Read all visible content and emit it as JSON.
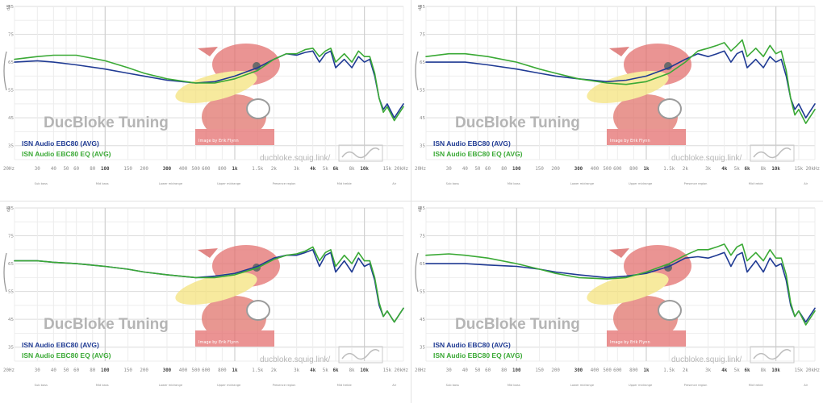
{
  "chart_data": [
    {
      "type": "line",
      "watermark": "DucBloke Tuning",
      "site": "ducbloke.squig.link/",
      "image_credit": "Image by Erik Flynn",
      "x_ticks": [
        "20Hz",
        "30",
        "40",
        "50",
        "60",
        "80",
        "100",
        "150",
        "200",
        "300",
        "400",
        "500",
        "600",
        "800",
        "1k",
        "1.5k",
        "2k",
        "3k",
        "4k",
        "5k",
        "6k",
        "8k",
        "10k",
        "15k",
        "20kHz"
      ],
      "y_ticks": [
        "85",
        "75",
        "65",
        "55",
        "45",
        "35"
      ],
      "ylabel": "dB",
      "xlim": [
        20,
        20000
      ],
      "ylim": [
        30,
        85
      ],
      "x_scale": "log",
      "grid": true,
      "legend_position": "bottom-left",
      "regions": [
        "Sub bass",
        "Mid bass",
        "Lower midrange",
        "Upper midrange",
        "Presence region",
        "Mid treble",
        "Air"
      ],
      "series": [
        {
          "name": "ISN Audio EBC80 (AVG)",
          "color": "#1f3a93",
          "x": [
            20,
            30,
            40,
            60,
            100,
            150,
            200,
            300,
            500,
            700,
            1000,
            1500,
            2000,
            2500,
            3000,
            3500,
            4000,
            4500,
            5000,
            5500,
            6000,
            7000,
            8000,
            9000,
            10000,
            11000,
            12000,
            13000,
            14000,
            15000,
            17000,
            20000
          ],
          "y": [
            65,
            65.5,
            65,
            64,
            62.5,
            61,
            60,
            58.5,
            57.5,
            58,
            60,
            63,
            66,
            68,
            67.5,
            68.5,
            69,
            65,
            68,
            69,
            63,
            66,
            63,
            67,
            65,
            66,
            60,
            52,
            48,
            50,
            45,
            50
          ]
        },
        {
          "name": "ISN Audio EBC80 EQ (AVG)",
          "color": "#3aa935",
          "x": [
            20,
            30,
            40,
            60,
            100,
            150,
            200,
            300,
            500,
            700,
            1000,
            1500,
            2000,
            2500,
            3000,
            3500,
            4000,
            4500,
            5000,
            5500,
            6000,
            7000,
            8000,
            9000,
            10000,
            11000,
            12000,
            13000,
            14000,
            15000,
            17000,
            20000
          ],
          "y": [
            66,
            67,
            67.5,
            67.5,
            65.5,
            63,
            61,
            59,
            57.5,
            57.5,
            59,
            62,
            66,
            68,
            68,
            69.5,
            70,
            67,
            69,
            70,
            65,
            68,
            65,
            69,
            67,
            67,
            61,
            52,
            47,
            49,
            44,
            49
          ]
        }
      ]
    },
    {
      "type": "line",
      "watermark": "DucBloke Tuning",
      "site": "ducbloke.squig.link/",
      "image_credit": "Image by Erik Flynn",
      "x_ticks": [
        "20Hz",
        "30",
        "40",
        "50",
        "60",
        "80",
        "100",
        "150",
        "200",
        "300",
        "400",
        "500",
        "600",
        "800",
        "1k",
        "1.5k",
        "2k",
        "3k",
        "4k",
        "5k",
        "6k",
        "8k",
        "10k",
        "15k",
        "20kHz"
      ],
      "y_ticks": [
        "85",
        "75",
        "65",
        "55",
        "45",
        "35"
      ],
      "ylabel": "dB",
      "xlim": [
        20,
        20000
      ],
      "ylim": [
        30,
        85
      ],
      "x_scale": "log",
      "grid": true,
      "legend_position": "bottom-left",
      "regions": [
        "Sub bass",
        "Mid bass",
        "Lower midrange",
        "Upper midrange",
        "Presence region",
        "Mid treble",
        "Air"
      ],
      "series": [
        {
          "name": "ISN Audio EBC80 (AVG)",
          "color": "#1f3a93",
          "x": [
            20,
            30,
            40,
            60,
            100,
            150,
            200,
            300,
            500,
            700,
            1000,
            1500,
            2000,
            2500,
            3000,
            3500,
            4000,
            4500,
            5000,
            5500,
            6000,
            7000,
            8000,
            9000,
            10000,
            11000,
            12000,
            13000,
            14000,
            15000,
            17000,
            20000
          ],
          "y": [
            65,
            65,
            65,
            64,
            62.5,
            61,
            60,
            59,
            58,
            58.5,
            60,
            63,
            66,
            68,
            67,
            68,
            69,
            65,
            68,
            69,
            63,
            66,
            63,
            67,
            65,
            66,
            60,
            52,
            48,
            50,
            45,
            50
          ]
        },
        {
          "name": "ISN Audio EBC80 EQ (AVG)",
          "color": "#3aa935",
          "x": [
            20,
            30,
            40,
            60,
            100,
            150,
            200,
            300,
            500,
            700,
            1000,
            1500,
            2000,
            2500,
            3000,
            3500,
            4000,
            4500,
            5000,
            5500,
            6000,
            7000,
            8000,
            9000,
            10000,
            11000,
            12000,
            13000,
            14000,
            15000,
            17000,
            20000
          ],
          "y": [
            67,
            68,
            68,
            67,
            65,
            62.5,
            61,
            59,
            57.5,
            57,
            58,
            61,
            65,
            69,
            70,
            71,
            72,
            69,
            71,
            73,
            67,
            70,
            67,
            71,
            68,
            69,
            62,
            52,
            46,
            48,
            43,
            48
          ]
        }
      ]
    },
    {
      "type": "line",
      "watermark": "DucBloke Tuning",
      "site": "ducbloke.squig.link/",
      "image_credit": "Image by Erik Flynn",
      "x_ticks": [
        "20Hz",
        "30",
        "40",
        "50",
        "60",
        "80",
        "100",
        "150",
        "200",
        "300",
        "400",
        "500",
        "600",
        "800",
        "1k",
        "1.5k",
        "2k",
        "3k",
        "4k",
        "5k",
        "6k",
        "8k",
        "10k",
        "15k",
        "20kHz"
      ],
      "y_ticks": [
        "85",
        "75",
        "65",
        "55",
        "45",
        "35"
      ],
      "ylabel": "dB",
      "xlim": [
        20,
        20000
      ],
      "ylim": [
        30,
        85
      ],
      "x_scale": "log",
      "grid": true,
      "legend_position": "bottom-left",
      "regions": [
        "Sub bass",
        "Mid bass",
        "Lower midrange",
        "Upper midrange",
        "Presence region",
        "Mid treble",
        "Air"
      ],
      "series": [
        {
          "name": "ISN Audio EBC80 (AVG)",
          "color": "#1f3a93",
          "x": [
            20,
            30,
            40,
            60,
            100,
            150,
            200,
            300,
            500,
            700,
            1000,
            1500,
            2000,
            2500,
            3000,
            3500,
            4000,
            4500,
            5000,
            5500,
            6000,
            7000,
            8000,
            9000,
            10000,
            11000,
            12000,
            13000,
            14000,
            15000,
            17000,
            20000
          ],
          "y": [
            66,
            66,
            65.5,
            65,
            64,
            63,
            62,
            61,
            60,
            60.5,
            61.5,
            64,
            67,
            68,
            68,
            69,
            70,
            64,
            68,
            69,
            62,
            66,
            62,
            67,
            64,
            65,
            59,
            50,
            46,
            48,
            44,
            49
          ]
        },
        {
          "name": "ISN Audio EBC80 EQ (AVG)",
          "color": "#3aa935",
          "x": [
            20,
            30,
            40,
            60,
            100,
            150,
            200,
            300,
            500,
            700,
            1000,
            1500,
            2000,
            2500,
            3000,
            3500,
            4000,
            4500,
            5000,
            5500,
            6000,
            7000,
            8000,
            9000,
            10000,
            11000,
            12000,
            13000,
            14000,
            15000,
            17000,
            20000
          ],
          "y": [
            66,
            66,
            65.5,
            65,
            64,
            63,
            62,
            61,
            60,
            60,
            61,
            63.5,
            66.5,
            68,
            68.5,
            69.5,
            71,
            66,
            69,
            70,
            64,
            68,
            65,
            69,
            66,
            66,
            60,
            51,
            46,
            48,
            44,
            49
          ]
        }
      ]
    },
    {
      "type": "line",
      "watermark": "DucBloke Tuning",
      "site": "ducbloke.squig.link/",
      "image_credit": "Image by Erik Flynn",
      "x_ticks": [
        "20Hz",
        "30",
        "40",
        "50",
        "60",
        "80",
        "100",
        "150",
        "200",
        "300",
        "400",
        "500",
        "600",
        "800",
        "1k",
        "1.5k",
        "2k",
        "3k",
        "4k",
        "5k",
        "6k",
        "8k",
        "10k",
        "15k",
        "20kHz"
      ],
      "y_ticks": [
        "85",
        "75",
        "65",
        "55",
        "45",
        "35"
      ],
      "ylabel": "dB",
      "xlim": [
        20,
        20000
      ],
      "ylim": [
        30,
        85
      ],
      "x_scale": "log",
      "grid": true,
      "legend_position": "bottom-left",
      "regions": [
        "Sub bass",
        "Mid bass",
        "Lower midrange",
        "Upper midrange",
        "Presence region",
        "Mid treble",
        "Air"
      ],
      "series": [
        {
          "name": "ISN Audio EBC80 (AVG)",
          "color": "#1f3a93",
          "x": [
            20,
            30,
            40,
            60,
            100,
            150,
            200,
            300,
            500,
            700,
            1000,
            1500,
            2000,
            2500,
            3000,
            3500,
            4000,
            4500,
            5000,
            5500,
            6000,
            7000,
            8000,
            9000,
            10000,
            11000,
            12000,
            13000,
            14000,
            15000,
            17000,
            20000
          ],
          "y": [
            65,
            65,
            65,
            64.5,
            64,
            63,
            62,
            61,
            60,
            60.5,
            61.5,
            64,
            67,
            67.5,
            67,
            68,
            69,
            64,
            68,
            69,
            62,
            66,
            62,
            67,
            64,
            65,
            59,
            50,
            46,
            48,
            44,
            49
          ]
        },
        {
          "name": "ISN Audio EBC80 EQ (AVG)",
          "color": "#3aa935",
          "x": [
            20,
            30,
            40,
            60,
            100,
            150,
            200,
            300,
            500,
            700,
            1000,
            1500,
            2000,
            2500,
            3000,
            3500,
            4000,
            4500,
            5000,
            5500,
            6000,
            7000,
            8000,
            9000,
            10000,
            11000,
            12000,
            13000,
            14000,
            15000,
            17000,
            20000
          ],
          "y": [
            68,
            68.5,
            68,
            67,
            65,
            63,
            61.5,
            60,
            59.5,
            60,
            62,
            65,
            68,
            70,
            70,
            71,
            72,
            68,
            71,
            72,
            66,
            69,
            66,
            70,
            67,
            67,
            61,
            51,
            46,
            48,
            43,
            48
          ]
        }
      ]
    }
  ]
}
